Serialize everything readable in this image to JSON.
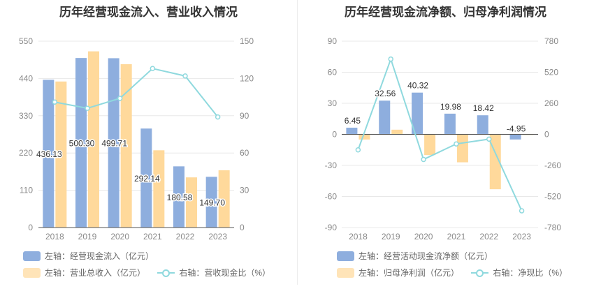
{
  "colors": {
    "bar_blue": "#8eaede",
    "bar_orange": "#ffd99b",
    "line_cyan": "#8fd9de",
    "grid": "#e8e8e8",
    "axis_text": "#888888"
  },
  "chart_data": [
    {
      "type": "bar",
      "title": "历年经营现金流入、营业收入情况",
      "categories": [
        "2018",
        "2019",
        "2020",
        "2021",
        "2022",
        "2023"
      ],
      "y_left": {
        "ticks": [
          0,
          110,
          220,
          330,
          440,
          550
        ],
        "ylim": [
          0,
          550
        ]
      },
      "y_right": {
        "ticks": [
          0,
          30,
          60,
          90,
          120,
          150
        ],
        "ylim": [
          0,
          150
        ]
      },
      "series": [
        {
          "name": "左轴：经营现金流入（亿元）",
          "type": "bar",
          "axis": "left",
          "color": "#8eaede",
          "values": [
            436.13,
            500.3,
            499.71,
            292.14,
            180.58,
            149.7
          ],
          "labels": [
            "436.13",
            "500.30",
            "499.71",
            "292.14",
            "180.58",
            "149.70"
          ]
        },
        {
          "name": "左轴：营业总收入（亿元）",
          "type": "bar",
          "axis": "left",
          "color": "#ffd99b",
          "values": [
            431,
            520,
            482,
            228,
            148,
            169
          ]
        },
        {
          "name": "右轴：营收现金比（%）",
          "type": "line",
          "axis": "right",
          "color": "#8fd9de",
          "values": [
            101,
            96,
            104,
            128,
            122,
            89
          ]
        }
      ],
      "legend_rows": [
        [
          "左轴：经营现金流入（亿元）"
        ],
        [
          "左轴：营业总收入（亿元）",
          "右轴：营收现金比（%）"
        ]
      ]
    },
    {
      "type": "bar",
      "title": "历年经营现金流净额、归母净利润情况",
      "categories": [
        "2018",
        "2019",
        "2020",
        "2021",
        "2022",
        "2023"
      ],
      "y_left": {
        "ticks": [
          -90,
          -60,
          -30,
          0,
          30,
          60,
          90
        ],
        "ylim": [
          -90,
          90
        ]
      },
      "y_right": {
        "ticks": [
          -780,
          -520,
          -260,
          0,
          260,
          520,
          780
        ],
        "ylim": [
          -780,
          780
        ]
      },
      "series": [
        {
          "name": "左轴：经营活动现金流净额（亿元）",
          "type": "bar",
          "axis": "left",
          "color": "#8eaede",
          "values": [
            6.45,
            32.56,
            40.32,
            19.98,
            18.42,
            -4.95
          ],
          "labels": [
            "6.45",
            "32.56",
            "40.32",
            "19.98",
            "18.42",
            "-4.95"
          ]
        },
        {
          "name": "左轴：归母净利润（亿元）",
          "type": "bar",
          "axis": "left",
          "color": "#ffd99b",
          "values": [
            -5,
            4.5,
            -20,
            -27,
            -53,
            -0.6
          ]
        },
        {
          "name": "右轴：净现比（%）",
          "type": "line",
          "axis": "right",
          "color": "#8fd9de",
          "values": [
            -130,
            630,
            -210,
            -80,
            -40,
            -640
          ]
        }
      ],
      "legend_rows": [
        [
          "左轴：经营活动现金流净额（亿元）"
        ],
        [
          "左轴：归母净利润（亿元）",
          "右轴：净现比（%）"
        ]
      ]
    }
  ]
}
